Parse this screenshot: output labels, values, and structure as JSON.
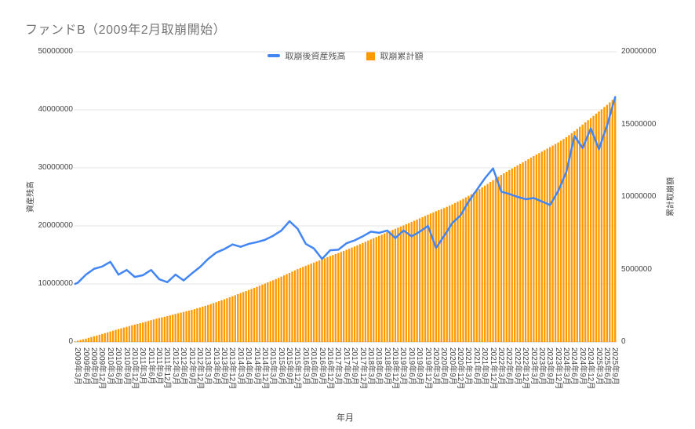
{
  "title": "ファンドB（2009年2月取崩開始）",
  "legend": [
    {
      "label": "取崩後資産残高",
      "color": "#4285F4",
      "marker": "line-dash"
    },
    {
      "label": "取崩累計額",
      "color": "#FF9900",
      "marker": "square"
    }
  ],
  "left_axis": {
    "title": "資産残高",
    "max": 50000000,
    "ticks": [
      "0",
      "10000000",
      "20000000",
      "30000000",
      "40000000",
      "50000000"
    ]
  },
  "right_axis": {
    "title": "累計取崩額",
    "max": 20000000,
    "ticks": [
      "0",
      "5000000",
      "10000000",
      "15000000",
      "20000000"
    ]
  },
  "x_axis": {
    "title": "年月"
  },
  "chart_data": {
    "type": "combo",
    "grid": "horizontal-only",
    "legend_position": "top-center",
    "monthly_points": 200,
    "x_start": "2009年2月",
    "x_end": "2025年9月",
    "categories": [
      "2009年3月",
      "2009年6月",
      "2009年9月",
      "2009年12月",
      "2010年3月",
      "2010年6月",
      "2010年9月",
      "2010年12月",
      "2011年3月",
      "2011年6月",
      "2011年9月",
      "2011年12月",
      "2012年3月",
      "2012年6月",
      "2012年9月",
      "2012年12月",
      "2013年3月",
      "2013年6月",
      "2013年9月",
      "2013年12月",
      "2014年3月",
      "2014年6月",
      "2014年9月",
      "2014年12月",
      "2015年3月",
      "2015年6月",
      "2015年9月",
      "2015年12月",
      "2016年3月",
      "2016年6月",
      "2016年9月",
      "2016年12月",
      "2017年3月",
      "2017年6月",
      "2017年9月",
      "2017年12月",
      "2018年3月",
      "2018年6月",
      "2018年9月",
      "2018年12月",
      "2019年3月",
      "2019年6月",
      "2019年9月",
      "2019年12月",
      "2020年3月",
      "2020年6月",
      "2020年9月",
      "2020年12月",
      "2021年3月",
      "2021年6月",
      "2021年9月",
      "2021年12月",
      "2022年3月",
      "2022年6月",
      "2022年9月",
      "2022年12月",
      "2023年3月",
      "2023年6月",
      "2023年9月",
      "2023年12月",
      "2024年3月",
      "2024年6月",
      "2024年9月",
      "2024年12月",
      "2025年3月",
      "2025年6月",
      "2025年9月"
    ],
    "series": [
      {
        "name": "取崩後資産残高",
        "type": "line",
        "axis": "left",
        "color": "#4285F4",
        "start": {
          "label": "2009年2月",
          "value": 10000000
        },
        "values": [
          10200000,
          11600000,
          12600000,
          13000000,
          13800000,
          11600000,
          12400000,
          11200000,
          11500000,
          12400000,
          10800000,
          10300000,
          11600000,
          10600000,
          11800000,
          12900000,
          14300000,
          15400000,
          16000000,
          16800000,
          16400000,
          16900000,
          17200000,
          17600000,
          18300000,
          19200000,
          20800000,
          19500000,
          16900000,
          16100000,
          14300000,
          15800000,
          15900000,
          17000000,
          17500000,
          18200000,
          19000000,
          18800000,
          19200000,
          17900000,
          19200000,
          18200000,
          19000000,
          20000000,
          16200000,
          18300000,
          20500000,
          21800000,
          24200000,
          26200000,
          28200000,
          29900000,
          25900000,
          25500000,
          25000000,
          24600000,
          24800000,
          24200000,
          23600000,
          26000000,
          29300000,
          35500000,
          33400000,
          36800000,
          33200000,
          37300000,
          42200000
        ]
      },
      {
        "name": "取崩累計額",
        "type": "bar",
        "axis": "right",
        "color": "#FF9900",
        "start": {
          "label": "2009年2月",
          "value": 40000
        },
        "values": [
          90000,
          230000,
          390000,
          550000,
          720000,
          890000,
          1040000,
          1200000,
          1340000,
          1500000,
          1650000,
          1780000,
          1930000,
          2070000,
          2210000,
          2370000,
          2550000,
          2740000,
          2940000,
          3150000,
          3370000,
          3580000,
          3800000,
          4030000,
          4260000,
          4500000,
          4760000,
          5020000,
          5250000,
          5470000,
          5690000,
          5920000,
          6130000,
          6350000,
          6580000,
          6820000,
          7070000,
          7310000,
          7560000,
          7800000,
          8030000,
          8270000,
          8520000,
          8770000,
          9010000,
          9230000,
          9480000,
          9760000,
          10070000,
          10410000,
          10770000,
          11150000,
          11510000,
          11840000,
          12170000,
          12490000,
          12810000,
          13120000,
          13430000,
          13750000,
          14110000,
          14530000,
          14980000,
          15430000,
          15880000,
          16340000,
          16850000
        ]
      }
    ]
  }
}
